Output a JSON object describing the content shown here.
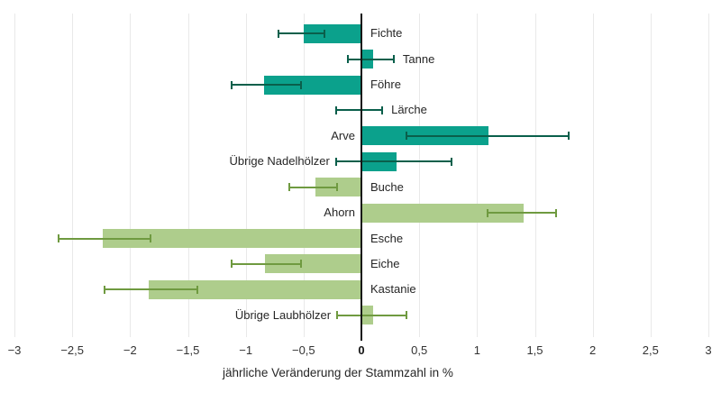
{
  "chart_data": {
    "type": "bar",
    "orientation": "horizontal",
    "title": "",
    "xlabel": "jährliche Veränderung der Stammzahl in %",
    "ylabel": "",
    "xlim": [
      -3,
      3
    ],
    "grid": true,
    "legend": "none",
    "error_bars": true,
    "xticks": [
      {
        "value": -3,
        "label": "−3",
        "bold": false
      },
      {
        "value": -2.5,
        "label": "−2,5",
        "bold": false
      },
      {
        "value": -2,
        "label": "−2",
        "bold": false
      },
      {
        "value": -1.5,
        "label": "−1,5",
        "bold": false
      },
      {
        "value": -1,
        "label": "−1",
        "bold": false
      },
      {
        "value": -0.5,
        "label": "−0,5",
        "bold": false
      },
      {
        "value": 0,
        "label": "0",
        "bold": true
      },
      {
        "value": 0.5,
        "label": "0,5",
        "bold": false
      },
      {
        "value": 1,
        "label": "1",
        "bold": false
      },
      {
        "value": 1.5,
        "label": "1,5",
        "bold": false
      },
      {
        "value": 2,
        "label": "2",
        "bold": false
      },
      {
        "value": 2.5,
        "label": "2,5",
        "bold": false
      },
      {
        "value": 3,
        "label": "3",
        "bold": false
      }
    ],
    "groups": {
      "Nadelholz": {
        "bar_color": "#0ba18c",
        "error_color": "#0a5f4b"
      },
      "Laubholz": {
        "bar_color": "#aecd8c",
        "error_color": "#6f9a40"
      }
    },
    "points": [
      {
        "label": "Fichte",
        "value": -0.5,
        "ci": [
          -0.72,
          -0.32
        ],
        "group": "Nadelholz",
        "label_side": "right"
      },
      {
        "label": "Tanne",
        "value": 0.1,
        "ci": [
          -0.12,
          0.28
        ],
        "group": "Nadelholz",
        "label_side": "right"
      },
      {
        "label": "Föhre",
        "value": -0.84,
        "ci": [
          -1.12,
          -0.52
        ],
        "group": "Nadelholz",
        "label_side": "right"
      },
      {
        "label": "Lärche",
        "value": 0.0,
        "ci": [
          -0.22,
          0.18
        ],
        "group": "Nadelholz",
        "label_side": "right"
      },
      {
        "label": "Arve",
        "value": 1.1,
        "ci": [
          0.39,
          1.79
        ],
        "group": "Nadelholz",
        "label_side": "left"
      },
      {
        "label": "Übrige Nadelhölzer",
        "value": 0.3,
        "ci": [
          -0.22,
          0.78
        ],
        "group": "Nadelholz",
        "label_side": "left"
      },
      {
        "label": "Buche",
        "value": -0.4,
        "ci": [
          -0.62,
          -0.21
        ],
        "group": "Laubholz",
        "label_side": "right"
      },
      {
        "label": "Ahorn",
        "value": 1.4,
        "ci": [
          1.09,
          1.68
        ],
        "group": "Laubholz",
        "label_side": "left"
      },
      {
        "label": "Esche",
        "value": -2.24,
        "ci": [
          -2.62,
          -1.82
        ],
        "group": "Laubholz",
        "label_side": "right"
      },
      {
        "label": "Eiche",
        "value": -0.83,
        "ci": [
          -1.12,
          -0.52
        ],
        "group": "Laubholz",
        "label_side": "right"
      },
      {
        "label": "Kastanie",
        "value": -1.84,
        "ci": [
          -2.22,
          -1.42
        ],
        "group": "Laubholz",
        "label_side": "right"
      },
      {
        "label": "Übrige Laubhölzer",
        "value": 0.1,
        "ci": [
          -0.21,
          0.39
        ],
        "group": "Laubholz",
        "label_side": "left"
      }
    ],
    "colors": {
      "gridline": "#e9e9e9",
      "zero_line": "#141414",
      "text": "#262626"
    }
  }
}
